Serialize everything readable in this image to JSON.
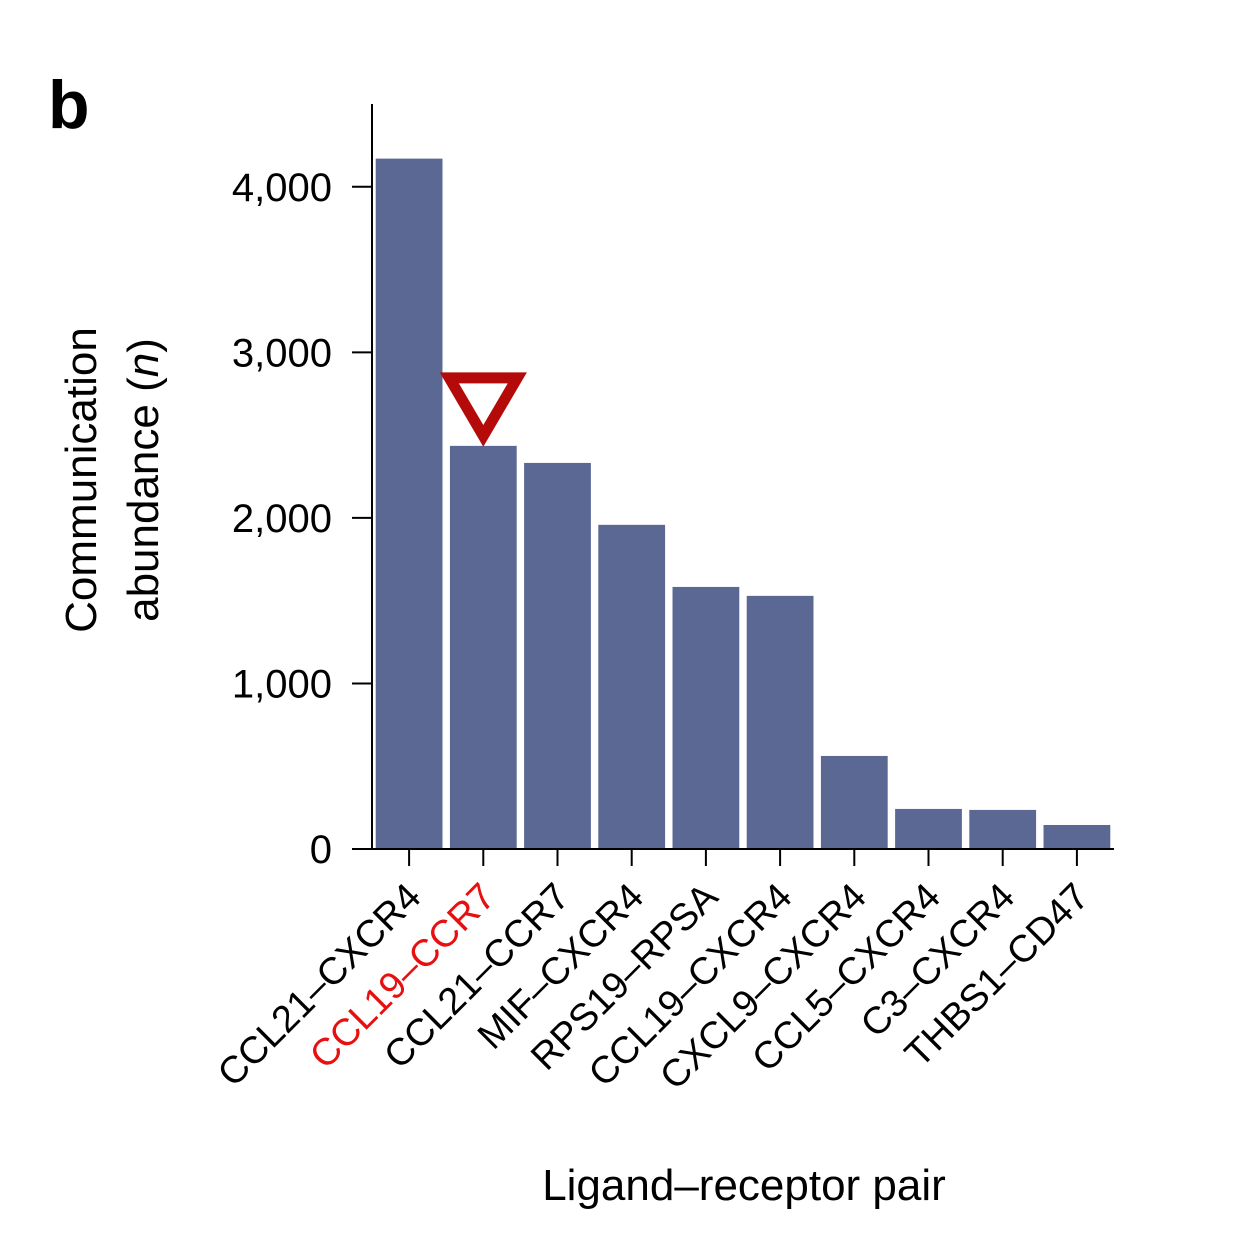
{
  "panel_label": "b",
  "chart_data": {
    "type": "bar",
    "title": "",
    "xlabel": "Ligand–receptor pair",
    "ylabel_line1": "Communication",
    "ylabel_line2_prefix": "abundance (",
    "ylabel_line2_italic": "n",
    "ylabel_line2_suffix": ")",
    "ylim": [
      0,
      4500
    ],
    "yticks": [
      0,
      1000,
      2000,
      3000,
      4000
    ],
    "ytick_labels": [
      "0",
      "1,000",
      "2,000",
      "3,000",
      "4,000"
    ],
    "grid": false,
    "categories": [
      "CCL21–CXCR4",
      "CCL19–CCR7",
      "CCL21–CCR7",
      "MIF–CXCR4",
      "RPS19–RPSA",
      "CCL19–CXCR4",
      "CXCL9–CXCR4",
      "CCL5–CXCR4",
      "C3–CXCR4",
      "THBS1–CD47"
    ],
    "values": [
      4170,
      2435,
      2332,
      1958,
      1583,
      1529,
      562,
      242,
      236,
      145
    ],
    "bar_color": "#5b6894",
    "highlighted_category": "CCL19–CCR7",
    "highlight_color": "#e8100f",
    "marker": {
      "shape": "open-down-triangle",
      "category": "CCL19–CCR7",
      "color": "#b50a0a"
    }
  }
}
